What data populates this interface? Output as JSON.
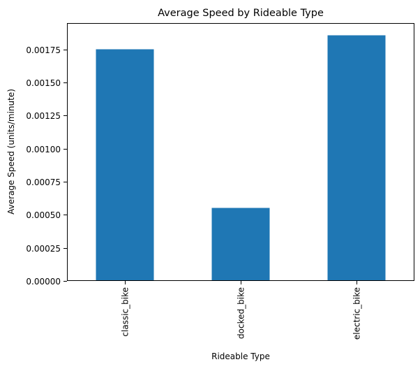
{
  "chart_data": {
    "type": "bar",
    "title": "Average Speed by Rideable Type",
    "xlabel": "Rideable Type",
    "ylabel": "Average Speed (units/minute)",
    "categories": [
      "classic_bike",
      "docked_bike",
      "electric_bike"
    ],
    "values": [
      0.001752,
      0.000552,
      0.001858
    ],
    "ylim": [
      0,
      0.00195
    ],
    "yticks": [
      0.0,
      0.00025,
      0.0005,
      0.00075,
      0.001,
      0.00125,
      0.0015,
      0.00175
    ],
    "ytick_labels": [
      "0.00000",
      "0.00025",
      "0.00050",
      "0.00075",
      "0.00100",
      "0.00125",
      "0.00150",
      "0.00175"
    ],
    "bar_color": "#1f77b4",
    "grid": false,
    "legend": "none"
  }
}
